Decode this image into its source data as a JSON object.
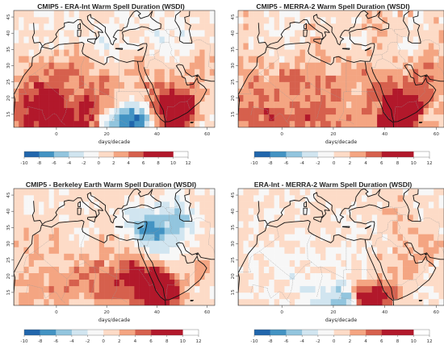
{
  "colorbar": {
    "colors": [
      "#2166ac",
      "#4393c3",
      "#92c5de",
      "#d1e5f0",
      "#f7f7f7",
      "#fddbc7",
      "#f4a582",
      "#d6604d",
      "#b2182b"
    ],
    "ticks": [
      "-10",
      "-8",
      "-6",
      "-4",
      "-2",
      "0",
      "2",
      "4",
      "6",
      "8",
      "10",
      "12"
    ],
    "unit": "days/decade"
  },
  "map": {
    "lon_range": [
      -17,
      63
    ],
    "lat_range": [
      11,
      47
    ],
    "lon_ticks": [
      "0",
      "20",
      "40",
      "60"
    ],
    "lat_ticks": [
      "15",
      "20",
      "25",
      "30",
      "35",
      "40",
      "45"
    ]
  },
  "panels": [
    {
      "title": "CMIP5 - ERA-Int    Warm Spell Duration (WSDI)"
    },
    {
      "title": "CMIP5 - MERRA-2    Warm Spell Duration (WSDI)"
    },
    {
      "title": "CMIP5 - Berkeley Earth    Warm Spell Duration (WSDI)"
    },
    {
      "title": "ERA-Int - MERRA-2    Warm Spell Duration (WSDI)"
    }
  ]
}
